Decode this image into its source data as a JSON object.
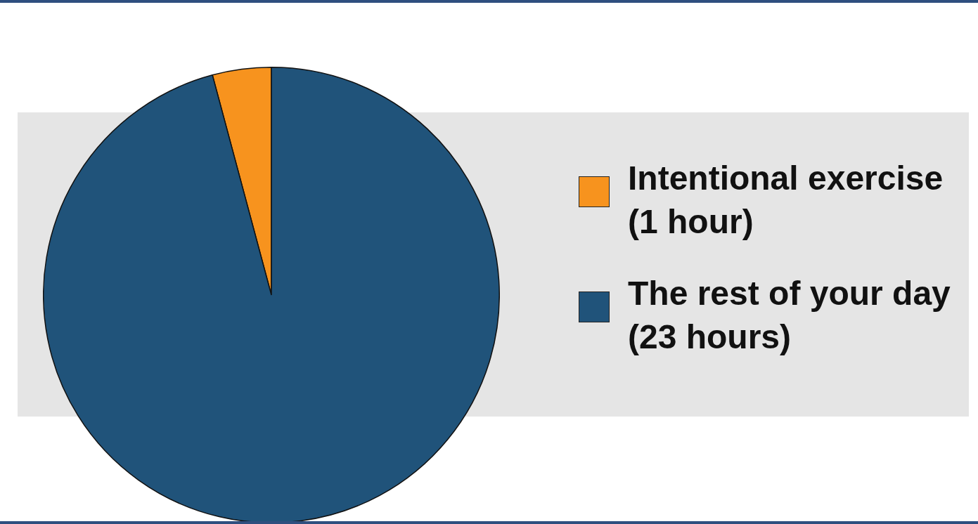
{
  "chart_data": {
    "type": "pie",
    "categories": [
      "Intentional exercise (1 hour)",
      "The rest of your day (23 hours)"
    ],
    "values": [
      1,
      23
    ],
    "colors": [
      "#f7931e",
      "#20537a"
    ],
    "legend": "right"
  }
}
